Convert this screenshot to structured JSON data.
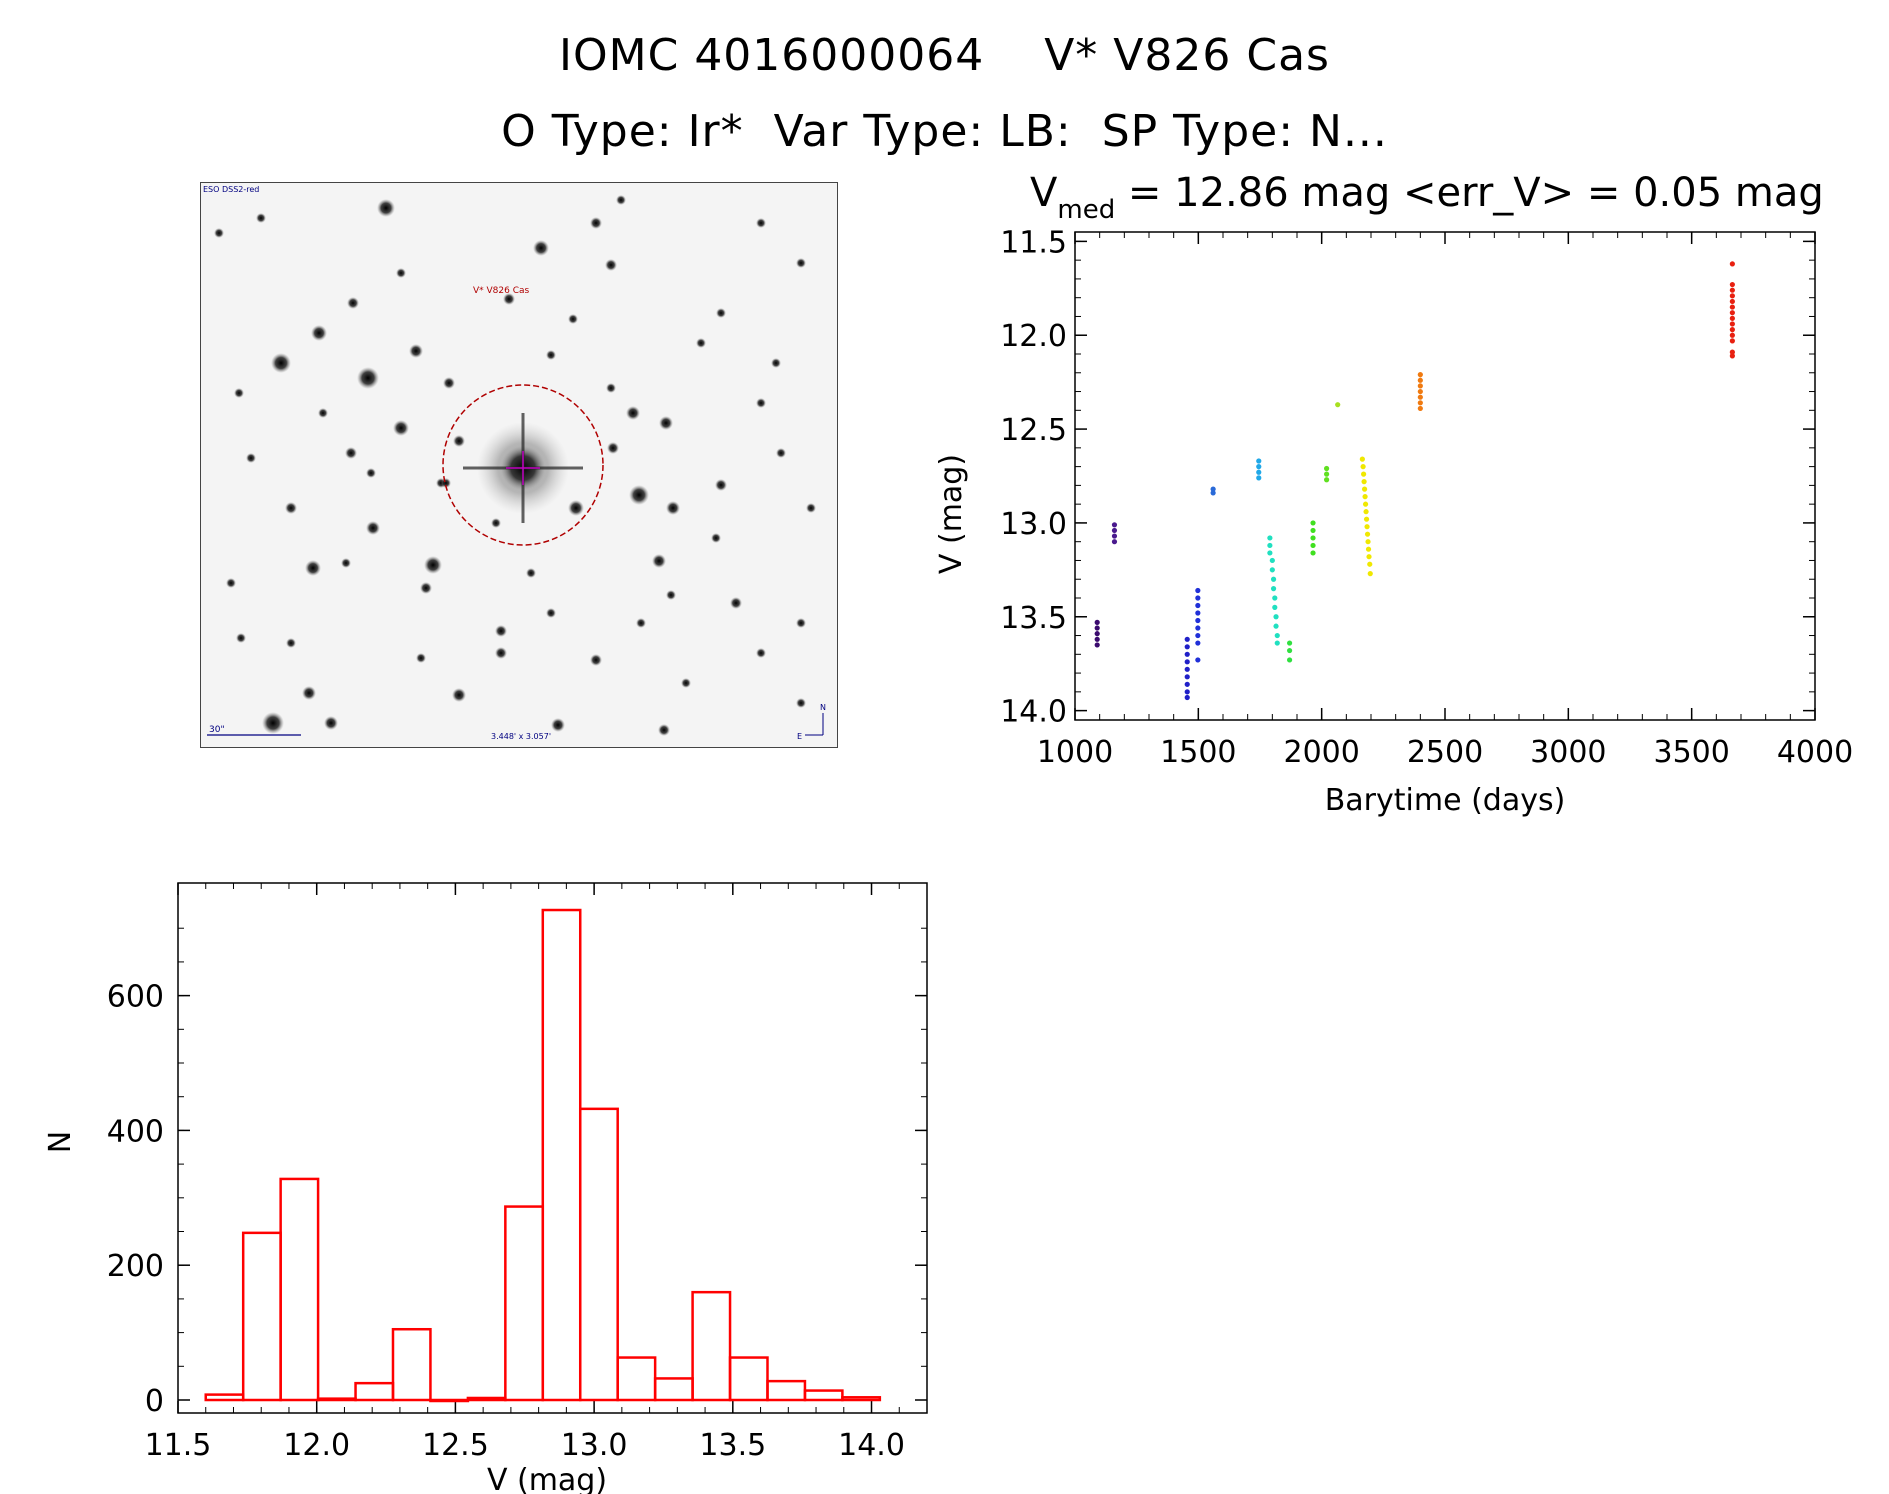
{
  "header": {
    "title_line1": "IOMC 4016000064    V* V826 Cas",
    "title_line2": "O Type: Ir*  Var Type: LB:  SP Type: N..."
  },
  "finder_chart": {
    "survey_label": "ESO DSS2-red",
    "target_label": "V* V826 Cas",
    "scale_label": "30\"",
    "fov_label": "3.448' x 3.057'",
    "north_label": "N",
    "east_label": "E"
  },
  "chart_data": [
    {
      "type": "scatter",
      "title_main": "V",
      "title_sub": "med",
      "title_rest": " = 12.86 mag <err_V> = 0.05 mag",
      "xlabel": "Barytime (days)",
      "ylabel": "V (mag)",
      "xlim": [
        1000,
        4000
      ],
      "ylim": [
        14.05,
        11.45
      ],
      "xticks": [
        "1000",
        "1500",
        "2000",
        "2500",
        "3000",
        "3500",
        "4000"
      ],
      "yticks": [
        "11.5",
        "12.0",
        "12.5",
        "13.0",
        "13.5",
        "14.0"
      ],
      "y_inverted": true,
      "series": [
        {
          "color": "#3a0a6e",
          "points": [
            [
              1090,
              13.53
            ],
            [
              1090,
              13.56
            ],
            [
              1090,
              13.59
            ],
            [
              1090,
              13.62
            ],
            [
              1090,
              13.65
            ]
          ]
        },
        {
          "color": "#4a1a8e",
          "points": [
            [
              1160,
              13.01
            ],
            [
              1160,
              13.04
            ],
            [
              1160,
              13.07
            ],
            [
              1160,
              13.1
            ]
          ]
        },
        {
          "color": "#2020c8",
          "points": [
            [
              1455,
              13.62
            ],
            [
              1455,
              13.66
            ],
            [
              1455,
              13.7
            ],
            [
              1455,
              13.74
            ],
            [
              1455,
              13.78
            ],
            [
              1455,
              13.82
            ],
            [
              1455,
              13.86
            ],
            [
              1455,
              13.9
            ],
            [
              1455,
              13.93
            ]
          ]
        },
        {
          "color": "#2030d8",
          "points": [
            [
              1498,
              13.36
            ],
            [
              1498,
              13.4
            ],
            [
              1498,
              13.44
            ],
            [
              1498,
              13.48
            ],
            [
              1498,
              13.52
            ],
            [
              1498,
              13.56
            ],
            [
              1498,
              13.6
            ],
            [
              1498,
              13.64
            ],
            [
              1498,
              13.73
            ]
          ]
        },
        {
          "color": "#2a6ad8",
          "points": [
            [
              1560,
              12.82
            ],
            [
              1560,
              12.84
            ]
          ]
        },
        {
          "color": "#20a8e8",
          "points": [
            [
              1745,
              12.67
            ],
            [
              1745,
              12.7
            ],
            [
              1745,
              12.73
            ],
            [
              1745,
              12.76
            ]
          ]
        },
        {
          "color": "#20e0c0",
          "points": [
            [
              1790,
              13.08
            ],
            [
              1790,
              13.12
            ],
            [
              1790,
              13.16
            ],
            [
              1800,
              13.2
            ],
            [
              1800,
              13.25
            ],
            [
              1805,
              13.3
            ],
            [
              1805,
              13.35
            ],
            [
              1810,
              13.4
            ],
            [
              1810,
              13.45
            ],
            [
              1815,
              13.5
            ],
            [
              1815,
              13.55
            ],
            [
              1820,
              13.6
            ],
            [
              1820,
              13.64
            ]
          ]
        },
        {
          "color": "#30e040",
          "points": [
            [
              1870,
              13.64
            ],
            [
              1870,
              13.68
            ],
            [
              1870,
              13.73
            ]
          ]
        },
        {
          "color": "#40e020",
          "points": [
            [
              1965,
              13.0
            ],
            [
              1965,
              13.04
            ],
            [
              1965,
              13.08
            ],
            [
              1965,
              13.12
            ],
            [
              1965,
              13.16
            ]
          ]
        },
        {
          "color": "#60e020",
          "points": [
            [
              2020,
              12.71
            ],
            [
              2020,
              12.74
            ],
            [
              2020,
              12.77
            ]
          ]
        },
        {
          "color": "#a8e020",
          "points": [
            [
              2065,
              12.37
            ]
          ]
        },
        {
          "color": "#f0e800",
          "points": [
            [
              2165,
              12.66
            ],
            [
              2168,
              12.7
            ],
            [
              2170,
              12.74
            ],
            [
              2172,
              12.78
            ],
            [
              2174,
              12.82
            ],
            [
              2176,
              12.86
            ],
            [
              2178,
              12.9
            ],
            [
              2180,
              12.94
            ],
            [
              2182,
              12.98
            ],
            [
              2184,
              13.02
            ],
            [
              2186,
              13.06
            ],
            [
              2188,
              13.1
            ],
            [
              2190,
              13.14
            ],
            [
              2192,
              13.18
            ],
            [
              2195,
              13.22
            ],
            [
              2197,
              13.27
            ]
          ]
        },
        {
          "color": "#f07a10",
          "points": [
            [
              2400,
              12.21
            ],
            [
              2400,
              12.24
            ],
            [
              2400,
              12.27
            ],
            [
              2400,
              12.3
            ],
            [
              2400,
              12.33
            ],
            [
              2400,
              12.36
            ],
            [
              2400,
              12.39
            ]
          ]
        },
        {
          "color": "#e82010",
          "points": [
            [
              3665,
              11.62
            ],
            [
              3665,
              11.73
            ],
            [
              3665,
              11.76
            ],
            [
              3665,
              11.79
            ],
            [
              3665,
              11.82
            ],
            [
              3665,
              11.85
            ],
            [
              3665,
              11.88
            ],
            [
              3665,
              11.91
            ],
            [
              3665,
              11.94
            ],
            [
              3665,
              11.97
            ],
            [
              3665,
              12.0
            ],
            [
              3665,
              12.03
            ],
            [
              3665,
              12.09
            ],
            [
              3665,
              12.11
            ]
          ]
        }
      ]
    },
    {
      "type": "bar",
      "xlabel": "V (mag)",
      "ylabel": "N",
      "xlim": [
        11.5,
        14.2
      ],
      "ylim": [
        0,
        730
      ],
      "xticks": [
        "11.5",
        "12.0",
        "12.5",
        "13.0",
        "13.5",
        "14.0"
      ],
      "yticks": [
        "0",
        "200",
        "400",
        "600"
      ],
      "bar_color": "#ff0000",
      "bin_left": [
        11.6,
        11.735,
        11.87,
        12.005,
        12.14,
        12.275,
        12.41,
        12.545,
        12.68,
        12.815,
        12.95,
        13.085,
        13.22,
        13.355,
        13.49,
        13.625,
        13.76,
        13.895
      ],
      "bin_width": 0.135,
      "values": [
        8,
        248,
        328,
        2,
        25,
        105,
        0,
        3,
        287,
        727,
        432,
        63,
        32,
        160,
        63,
        28,
        14,
        4
      ]
    }
  ]
}
